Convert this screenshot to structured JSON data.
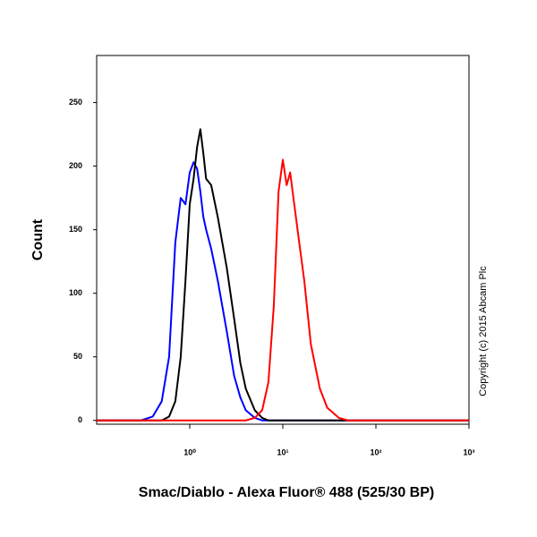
{
  "chart_data": {
    "type": "line",
    "x_label": "Smac/Diablo - Alexa Fluor® 488 (525/30 BP)",
    "y_label": "Count",
    "annotation": "Copyright (c) 2015 Abcam Plc",
    "xscale": "log",
    "xlim": [
      0.1,
      1000
    ],
    "ylim": [
      -3,
      287
    ],
    "xticks": [
      {
        "value": 1,
        "label": "10⁰"
      },
      {
        "value": 10,
        "label": "10¹"
      },
      {
        "value": 100,
        "label": "10²"
      },
      {
        "value": 1000,
        "label": "10³"
      }
    ],
    "yticks": [
      0,
      50,
      100,
      150,
      200,
      250
    ],
    "x": [
      0.1,
      0.3,
      0.4,
      0.5,
      0.6,
      0.7,
      0.8,
      0.9,
      1.0,
      1.1,
      1.2,
      1.3,
      1.4,
      1.5,
      1.7,
      2,
      2.5,
      3,
      3.5,
      4,
      5,
      6,
      7,
      8,
      9,
      10,
      11,
      12,
      13,
      15,
      17,
      20,
      25,
      30,
      40,
      50,
      1000
    ],
    "series": [
      {
        "color": "#0000ff",
        "values": [
          0,
          0,
          3,
          15,
          50,
          140,
          175,
          170,
          195,
          203,
          198,
          180,
          160,
          150,
          135,
          110,
          70,
          35,
          18,
          8,
          2,
          0,
          0,
          0,
          0,
          0,
          0,
          0,
          0,
          0,
          0,
          0,
          0,
          0,
          0,
          0,
          0
        ]
      },
      {
        "color": "#000000",
        "values": [
          0,
          0,
          0,
          0,
          3,
          15,
          50,
          110,
          170,
          190,
          215,
          229,
          210,
          190,
          185,
          160,
          120,
          80,
          45,
          25,
          8,
          2,
          0,
          0,
          0,
          0,
          0,
          0,
          0,
          0,
          0,
          0,
          0,
          0,
          0,
          0,
          0
        ]
      },
      {
        "color": "#ff0000",
        "values": [
          0,
          0,
          0,
          0,
          0,
          0,
          0,
          0,
          0,
          0,
          0,
          0,
          0,
          0,
          0,
          0,
          0,
          0,
          0,
          0,
          2,
          8,
          30,
          90,
          180,
          205,
          185,
          195,
          175,
          140,
          110,
          60,
          25,
          10,
          2,
          0,
          0
        ]
      }
    ]
  }
}
